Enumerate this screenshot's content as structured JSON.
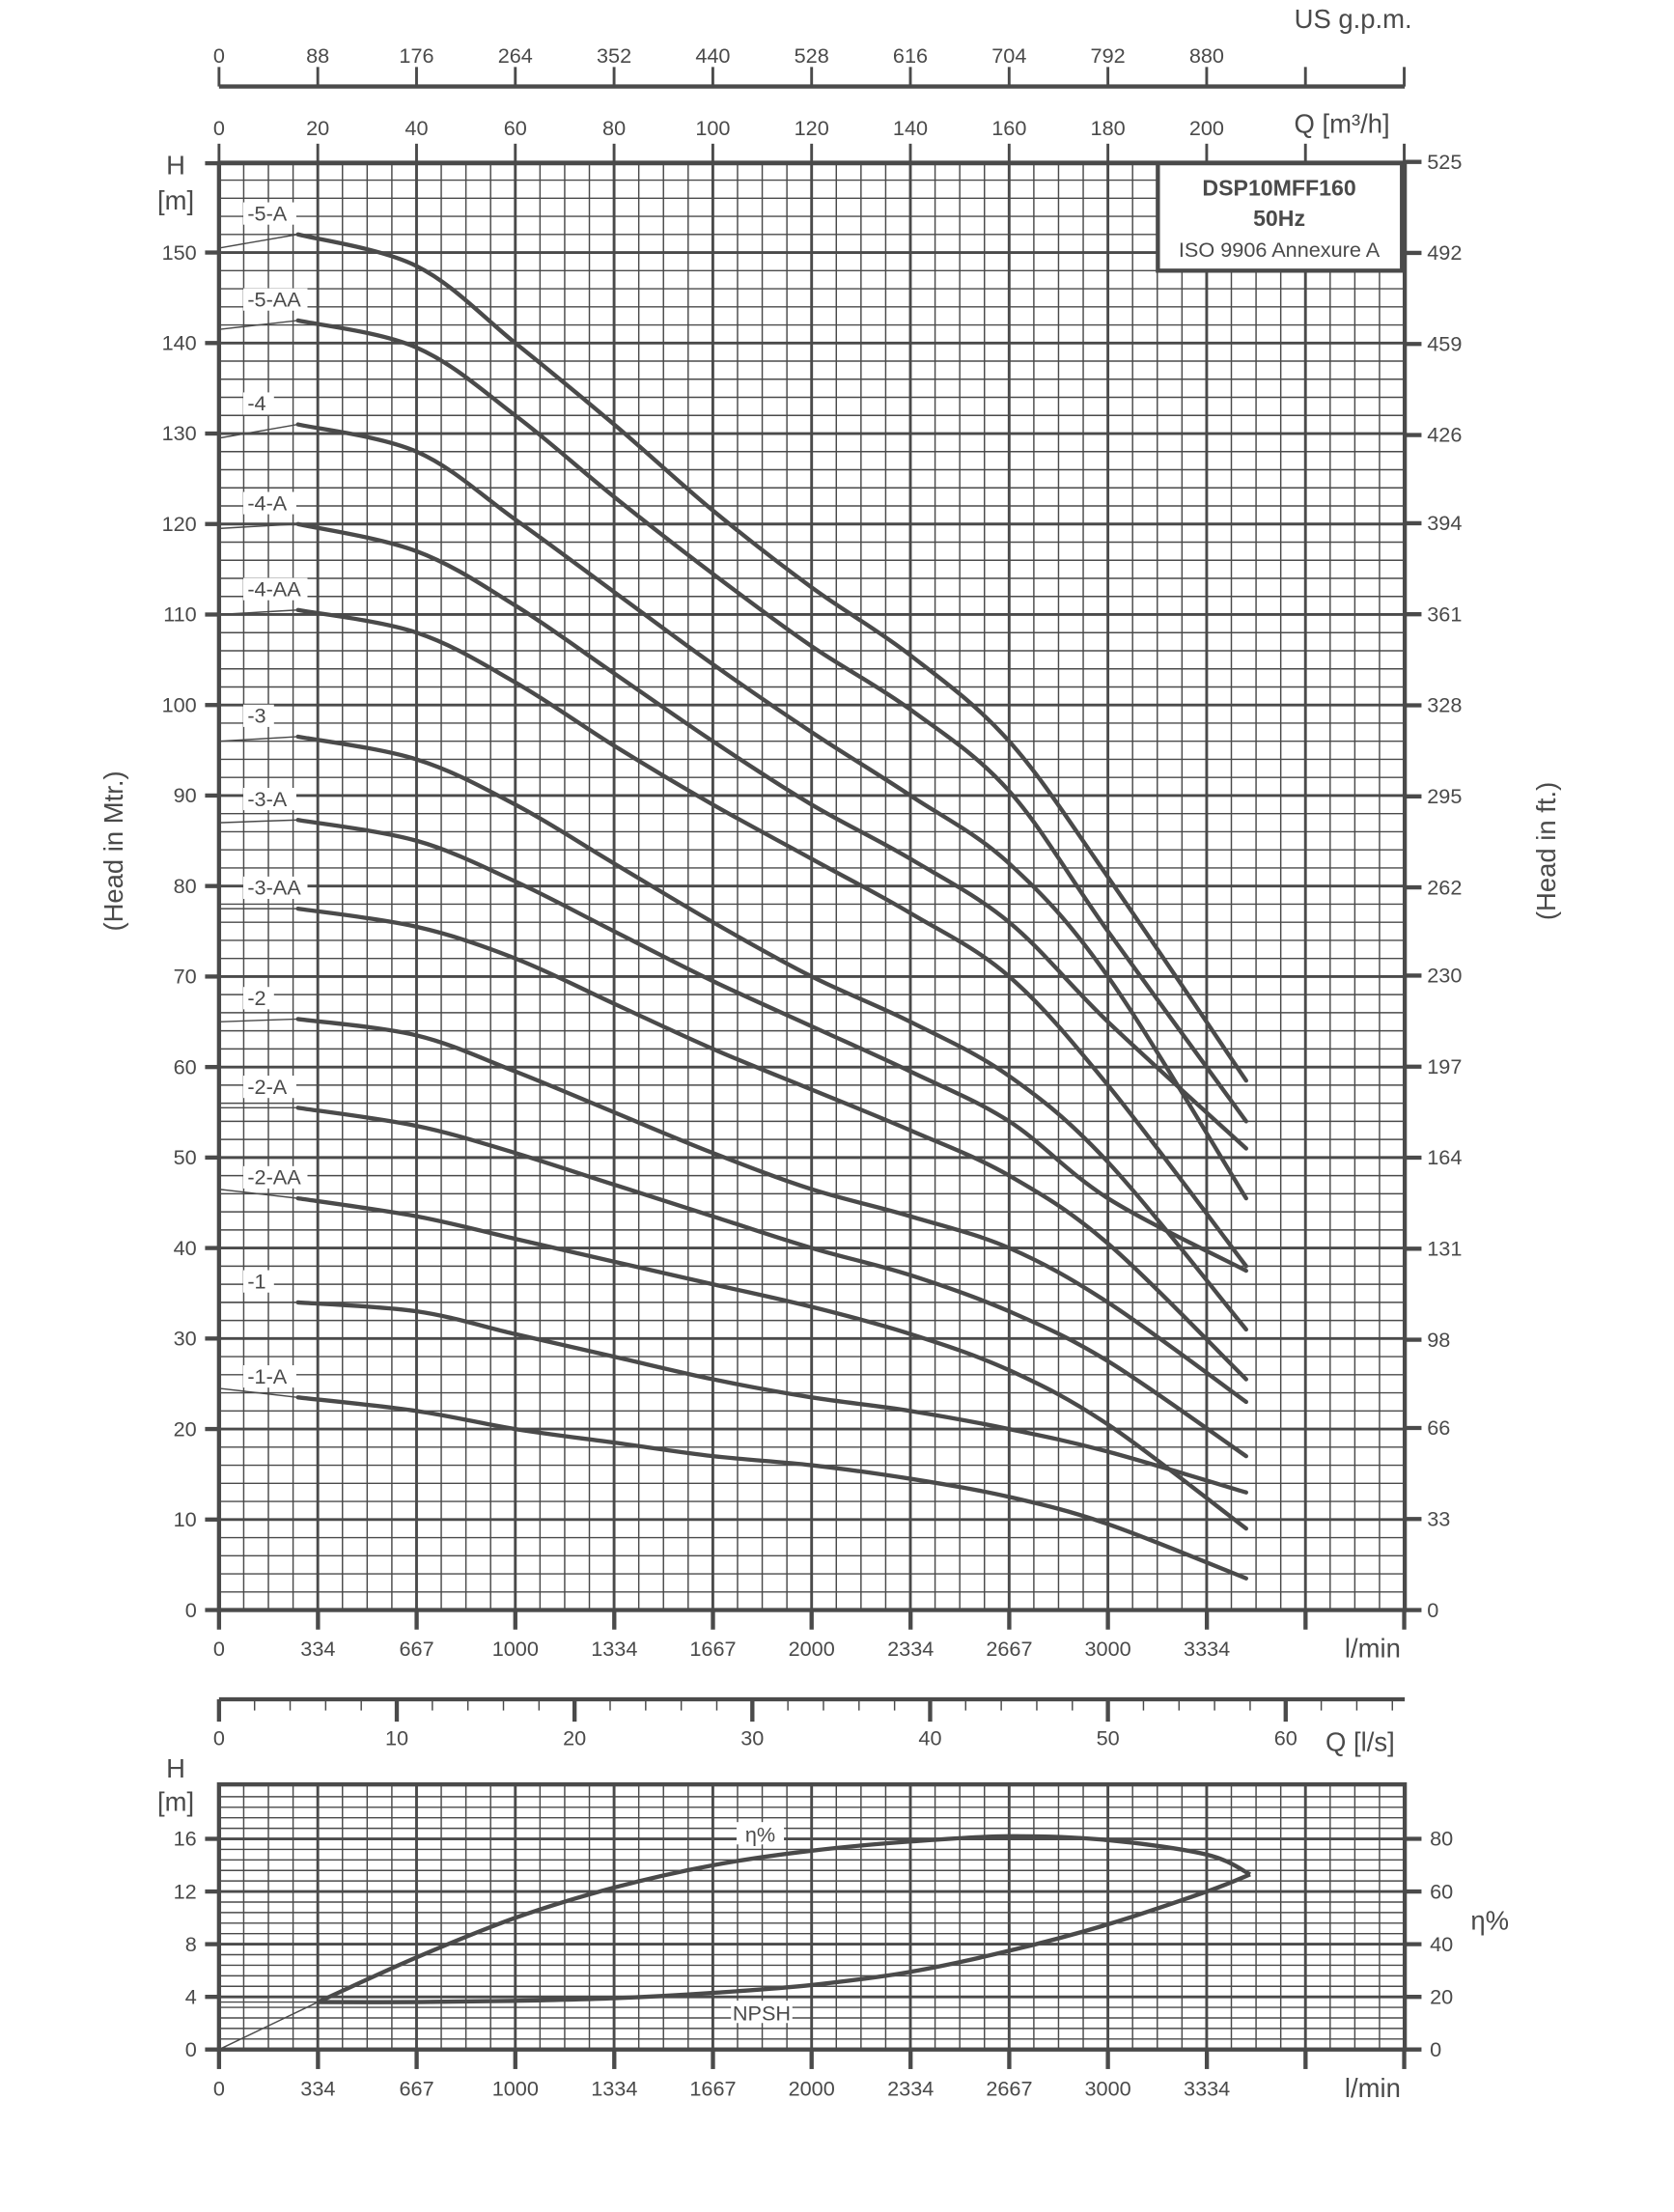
{
  "header": {
    "gpm_unit": "US g.p.m.",
    "m3h_unit": "Q [m³/h]",
    "ls_unit": "Q [l/s]",
    "lmin_unit": "l/min"
  },
  "title_box": {
    "model": "DSP10MFF160",
    "frequency": "50Hz",
    "standard": "ISO 9906 Annexure A"
  },
  "axes": {
    "gpm_ticks": [
      "0",
      "88",
      "176",
      "264",
      "352",
      "440",
      "528",
      "616",
      "704",
      "792",
      "880"
    ],
    "m3h_ticks": [
      "0",
      "20",
      "40",
      "60",
      "80",
      "100",
      "120",
      "140",
      "160",
      "180",
      "200"
    ],
    "lmin_ticks": [
      "0",
      "334",
      "667",
      "1000",
      "1334",
      "1667",
      "2000",
      "2334",
      "2667",
      "3000",
      "3334"
    ],
    "ls_ticks": [
      "0",
      "10",
      "20",
      "30",
      "40",
      "50",
      "60"
    ],
    "head_m_ticks": [
      "0",
      "10",
      "20",
      "30",
      "40",
      "50",
      "60",
      "70",
      "80",
      "90",
      "100",
      "110",
      "120",
      "130",
      "140",
      "150"
    ],
    "head_ft_ticks": [
      "0",
      "33",
      "66",
      "98",
      "131",
      "164",
      "197",
      "230",
      "262",
      "295",
      "328",
      "361",
      "394",
      "426",
      "459",
      "492",
      "525"
    ],
    "head_unit_top": "H",
    "head_unit_bottom": "[m]",
    "left_title": "(Head in Mtr.)",
    "right_title": "(Head in ft.)",
    "npsh_ticks": [
      "0",
      "4",
      "8",
      "12",
      "16"
    ],
    "eff_ticks": [
      "0",
      "20",
      "40",
      "60",
      "80"
    ],
    "eff_title": "η%"
  },
  "chart_data": [
    {
      "type": "line",
      "title": "DSP10MFF160 50Hz — Head vs Flow",
      "xlabel": "Q [m³/h]",
      "ylabel": "H [m]",
      "xlim": [
        0,
        240
      ],
      "ylim": [
        0,
        160
      ],
      "grid": true,
      "x": [
        0,
        16,
        40,
        60,
        80,
        100,
        120,
        140,
        160,
        180,
        208
      ],
      "series": [
        {
          "name": "-5-A",
          "values": [
            150.5,
            152,
            148.5,
            140,
            131,
            121.5,
            113,
            105.5,
            96,
            81,
            58.5
          ]
        },
        {
          "name": "-5-AA",
          "values": [
            141.5,
            142.5,
            139.5,
            132,
            123,
            114.5,
            106.5,
            99.5,
            90.5,
            75,
            54
          ]
        },
        {
          "name": "-4",
          "values": [
            129.5,
            131,
            128,
            120.5,
            112.5,
            104.5,
            97,
            90,
            82.5,
            70,
            45.5
          ]
        },
        {
          "name": "-4-A",
          "values": [
            119.5,
            120,
            117,
            111,
            103.5,
            96,
            89,
            83,
            76,
            65,
            51
          ]
        },
        {
          "name": "-4-AA",
          "values": [
            110,
            110.5,
            108,
            102.5,
            95.5,
            89,
            83,
            77,
            70,
            58,
            38
          ]
        },
        {
          "name": "-3",
          "values": [
            96,
            96.5,
            94,
            89,
            82.5,
            76,
            70,
            65,
            59,
            49.5,
            31
          ]
        },
        {
          "name": "-3-A",
          "values": [
            87,
            87.3,
            85,
            80.5,
            75,
            69.5,
            64.5,
            59.5,
            54,
            45.5,
            37.5
          ]
        },
        {
          "name": "-3-AA",
          "values": [
            77.5,
            77.5,
            75.5,
            72,
            67,
            62,
            57.5,
            53,
            48,
            40.5,
            25.5
          ]
        },
        {
          "name": "-2",
          "values": [
            65,
            65.3,
            63.5,
            59.5,
            55,
            50.5,
            46.5,
            43.5,
            40,
            34,
            23
          ]
        },
        {
          "name": "-2-A",
          "values": [
            55.5,
            55.5,
            53.5,
            50.5,
            47,
            43.5,
            40,
            37,
            33,
            27.5,
            17
          ]
        },
        {
          "name": "-2-AA",
          "values": [
            46.5,
            45.5,
            43.5,
            41,
            38.5,
            36,
            33.5,
            30.5,
            26.5,
            20.5,
            9
          ]
        },
        {
          "name": "-1",
          "values": [
            34,
            34,
            33,
            30.5,
            28,
            25.5,
            23.5,
            22,
            20,
            17.5,
            13
          ]
        },
        {
          "name": "-1-A",
          "values": [
            24.5,
            23.5,
            22,
            20,
            18.5,
            17,
            16,
            14.5,
            12.5,
            9.5,
            3.5
          ]
        }
      ]
    },
    {
      "type": "line",
      "title": "NPSH and Efficiency",
      "xlabel": "l/min",
      "ylabel": "H [m]",
      "y2label": "η%",
      "xlim": [
        0,
        4000
      ],
      "ylim": [
        0,
        20
      ],
      "y2lim": [
        0,
        100
      ],
      "grid": true,
      "x": [
        0,
        334,
        667,
        1000,
        1334,
        1667,
        2000,
        2334,
        2667,
        3000,
        3334,
        3480
      ],
      "series": [
        {
          "name": "η%",
          "axis": "right",
          "values": [
            0,
            18,
            35,
            50,
            61.5,
            70,
            75.5,
            79,
            81,
            79.5,
            74,
            66.5
          ]
        },
        {
          "name": "NPSH",
          "axis": "left",
          "values": [
            3.6,
            3.6,
            3.6,
            3.7,
            3.9,
            4.3,
            4.9,
            5.9,
            7.5,
            9.5,
            12,
            13.3
          ]
        }
      ]
    }
  ]
}
